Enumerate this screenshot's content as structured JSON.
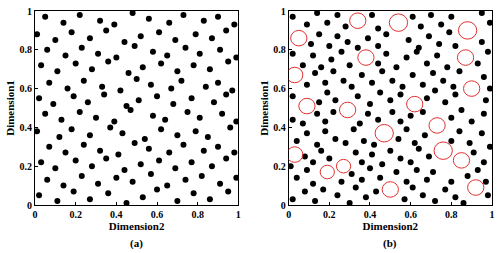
{
  "chart_data": [
    {
      "type": "scatter",
      "annotation": "(a)",
      "x_label": "Dimension2",
      "y_label": "Dimension1",
      "xlim": [
        0,
        1
      ],
      "ylim": [
        0,
        1
      ],
      "xticks": [
        0,
        0.2,
        0.4,
        0.6,
        0.8,
        1
      ],
      "yticks": [
        0,
        0.2,
        0.4,
        0.6,
        0.8,
        1
      ],
      "grid": false,
      "color": "#000000",
      "marker": "circle",
      "x": [
        0.02,
        0.11,
        0.19,
        0.27,
        0.36,
        0.45,
        0.53,
        0.6,
        0.7,
        0.78,
        0.86,
        0.95,
        0.06,
        0.14,
        0.23,
        0.31,
        0.4,
        0.48,
        0.57,
        0.65,
        0.74,
        0.82,
        0.91,
        0.99,
        0.03,
        0.1,
        0.2,
        0.28,
        0.35,
        0.44,
        0.52,
        0.61,
        0.69,
        0.77,
        0.87,
        0.94,
        0.07,
        0.15,
        0.24,
        0.32,
        0.41,
        0.49,
        0.56,
        0.66,
        0.73,
        0.83,
        0.9,
        0.98,
        0.01,
        0.12,
        0.18,
        0.27,
        0.37,
        0.43,
        0.54,
        0.62,
        0.7,
        0.79,
        0.85,
        0.96,
        0.05,
        0.13,
        0.22,
        0.3,
        0.39,
        0.47,
        0.58,
        0.64,
        0.75,
        0.81,
        0.92,
        0.99,
        0.02,
        0.09,
        0.19,
        0.26,
        0.34,
        0.45,
        0.51,
        0.6,
        0.68,
        0.77,
        0.88,
        0.94,
        0.07,
        0.16,
        0.24,
        0.33,
        0.42,
        0.5,
        0.57,
        0.67,
        0.72,
        0.84,
        0.9,
        0.97,
        0.03,
        0.11,
        0.2,
        0.28,
        0.36,
        0.46,
        0.53,
        0.62,
        0.7,
        0.78,
        0.86,
        0.95,
        0.06,
        0.15,
        0.23,
        0.31,
        0.4,
        0.49,
        0.58,
        0.65,
        0.74,
        0.81,
        0.91,
        0.99,
        0.01,
        0.1,
        0.18,
        0.27,
        0.35,
        0.44,
        0.52,
        0.61,
        0.69,
        0.79,
        0.87,
        0.94,
        0.05,
        0.14,
        0.22,
        0.32,
        0.39,
        0.48,
        0.56,
        0.66,
        0.73,
        0.83,
        0.9,
        0.98
      ],
      "y": [
        0.05,
        0.02,
        0.07,
        0.03,
        0.06,
        0.01,
        0.04,
        0.08,
        0.02,
        0.06,
        0.03,
        0.07,
        0.13,
        0.1,
        0.15,
        0.11,
        0.14,
        0.12,
        0.16,
        0.1,
        0.13,
        0.15,
        0.11,
        0.14,
        0.22,
        0.19,
        0.23,
        0.2,
        0.24,
        0.18,
        0.21,
        0.23,
        0.19,
        0.22,
        0.2,
        0.24,
        0.3,
        0.27,
        0.31,
        0.28,
        0.26,
        0.32,
        0.29,
        0.27,
        0.31,
        0.28,
        0.3,
        0.27,
        0.38,
        0.35,
        0.39,
        0.36,
        0.4,
        0.37,
        0.34,
        0.39,
        0.36,
        0.38,
        0.35,
        0.4,
        0.47,
        0.44,
        0.48,
        0.45,
        0.43,
        0.49,
        0.46,
        0.44,
        0.48,
        0.45,
        0.47,
        0.43,
        0.55,
        0.52,
        0.56,
        0.53,
        0.57,
        0.51,
        0.54,
        0.56,
        0.52,
        0.55,
        0.53,
        0.57,
        0.63,
        0.6,
        0.64,
        0.61,
        0.59,
        0.65,
        0.62,
        0.6,
        0.64,
        0.61,
        0.63,
        0.59,
        0.72,
        0.69,
        0.73,
        0.7,
        0.74,
        0.68,
        0.71,
        0.73,
        0.69,
        0.72,
        0.7,
        0.74,
        0.8,
        0.77,
        0.81,
        0.78,
        0.76,
        0.82,
        0.79,
        0.77,
        0.81,
        0.78,
        0.8,
        0.76,
        0.88,
        0.85,
        0.89,
        0.86,
        0.9,
        0.84,
        0.87,
        0.89,
        0.85,
        0.88,
        0.86,
        0.9,
        0.97,
        0.94,
        0.98,
        0.95,
        0.93,
        0.99,
        0.96,
        0.94,
        0.98,
        0.95,
        0.97,
        0.93
      ]
    },
    {
      "type": "scatter",
      "annotation": "(b)",
      "x_label": "Dimension2",
      "y_label": "Dimension1",
      "xlim": [
        0,
        1
      ],
      "ylim": [
        0,
        1
      ],
      "xticks": [
        0,
        0.2,
        0.4,
        0.6,
        0.8,
        1
      ],
      "yticks": [
        0,
        0.2,
        0.4,
        0.6,
        0.8,
        1
      ],
      "grid": false,
      "color": "#000000",
      "marker": "circle",
      "x": [
        0.02,
        0.08,
        0.13,
        0.17,
        0.24,
        0.3,
        0.33,
        0.38,
        0.43,
        0.57,
        0.61,
        0.66,
        0.72,
        0.77,
        0.82,
        0.86,
        0.98,
        0.97,
        0.04,
        0.09,
        0.12,
        0.26,
        0.31,
        0.36,
        0.4,
        0.45,
        0.53,
        0.58,
        0.63,
        0.68,
        0.71,
        0.8,
        0.88,
        0.93,
        0.01,
        0.08,
        0.12,
        0.16,
        0.2,
        0.33,
        0.36,
        0.41,
        0.46,
        0.5,
        0.55,
        0.6,
        0.64,
        0.69,
        0.91,
        0.96,
        0.99,
        0.04,
        0.09,
        0.14,
        0.18,
        0.23,
        0.28,
        0.32,
        0.37,
        0.42,
        0.54,
        0.58,
        0.62,
        0.67,
        0.8,
        0.84,
        0.89,
        0.95,
        0.02,
        0.07,
        0.14,
        0.18,
        0.22,
        0.35,
        0.39,
        0.44,
        0.51,
        0.55,
        0.6,
        0.66,
        0.8,
        0.85,
        0.9,
        0.96,
        0.02,
        0.15,
        0.19,
        0.23,
        0.34,
        0.4,
        0.45,
        0.5,
        0.55,
        0.68,
        0.72,
        0.77,
        0.82,
        0.97,
        0.99,
        0.09,
        0.13,
        0.18,
        0.22,
        0.27,
        0.31,
        0.36,
        0.41,
        0.46,
        0.51,
        0.56,
        0.61,
        0.66,
        0.71,
        0.76,
        0.81,
        0.84,
        0.96,
        0.02,
        0.07,
        0.12,
        0.16,
        0.21,
        0.26,
        0.3,
        0.44,
        0.48,
        0.53,
        0.58,
        0.63,
        0.68,
        0.73,
        0.78,
        0.93,
        0.98,
        0.11,
        0.15,
        0.2,
        0.24,
        0.29,
        0.34,
        0.39,
        0.44,
        0.48,
        0.59,
        0.64,
        0.69,
        0.74,
        0.79,
        0.82,
        0.95,
        0.02,
        0.09,
        0.14,
        0.19,
        0.24,
        0.28,
        0.41,
        0.44,
        0.61,
        0.65,
        0.7,
        0.75,
        0.8,
        0.95,
        0.99
      ],
      "y": [
        0.03,
        0.07,
        0.02,
        0.08,
        0.05,
        0.01,
        0.09,
        0.04,
        0.07,
        0.03,
        0.09,
        0.05,
        0.02,
        0.08,
        0.04,
        0.01,
        0.05,
        0.12,
        0.14,
        0.18,
        0.11,
        0.12,
        0.16,
        0.13,
        0.19,
        0.14,
        0.17,
        0.12,
        0.18,
        0.13,
        0.17,
        0.12,
        0.15,
        0.18,
        0.2,
        0.25,
        0.22,
        0.28,
        0.24,
        0.27,
        0.22,
        0.26,
        0.21,
        0.28,
        0.24,
        0.22,
        0.29,
        0.25,
        0.27,
        0.22,
        0.3,
        0.33,
        0.37,
        0.31,
        0.38,
        0.34,
        0.32,
        0.39,
        0.33,
        0.31,
        0.34,
        0.39,
        0.32,
        0.36,
        0.33,
        0.38,
        0.32,
        0.37,
        0.44,
        0.42,
        0.47,
        0.43,
        0.48,
        0.42,
        0.47,
        0.44,
        0.48,
        0.43,
        0.46,
        0.48,
        0.45,
        0.49,
        0.43,
        0.47,
        0.56,
        0.53,
        0.58,
        0.54,
        0.56,
        0.52,
        0.58,
        0.54,
        0.57,
        0.55,
        0.59,
        0.53,
        0.57,
        0.54,
        0.6,
        0.62,
        0.68,
        0.63,
        0.69,
        0.64,
        0.61,
        0.67,
        0.63,
        0.69,
        0.64,
        0.61,
        0.67,
        0.62,
        0.68,
        0.64,
        0.61,
        0.69,
        0.66,
        0.78,
        0.72,
        0.77,
        0.71,
        0.75,
        0.79,
        0.72,
        0.73,
        0.78,
        0.71,
        0.76,
        0.79,
        0.73,
        0.77,
        0.71,
        0.73,
        0.79,
        0.83,
        0.88,
        0.82,
        0.87,
        0.84,
        0.81,
        0.86,
        0.82,
        0.88,
        0.85,
        0.81,
        0.87,
        0.83,
        0.89,
        0.82,
        0.84,
        0.97,
        0.93,
        0.99,
        0.94,
        0.98,
        0.92,
        0.98,
        0.91,
        0.97,
        0.92,
        0.98,
        0.93,
        0.97,
        0.99,
        0.94
      ],
      "circles": [
        {
          "x": 0.05,
          "y": 0.86,
          "r": 0.04
        },
        {
          "x": 0.34,
          "y": 0.95,
          "r": 0.04
        },
        {
          "x": 0.54,
          "y": 0.94,
          "r": 0.045
        },
        {
          "x": 0.88,
          "y": 0.9,
          "r": 0.045
        },
        {
          "x": 0.03,
          "y": 0.67,
          "r": 0.04
        },
        {
          "x": 0.38,
          "y": 0.76,
          "r": 0.04
        },
        {
          "x": 0.87,
          "y": 0.76,
          "r": 0.04
        },
        {
          "x": 0.9,
          "y": 0.6,
          "r": 0.04
        },
        {
          "x": 0.09,
          "y": 0.51,
          "r": 0.04
        },
        {
          "x": 0.29,
          "y": 0.49,
          "r": 0.04
        },
        {
          "x": 0.62,
          "y": 0.52,
          "r": 0.04
        },
        {
          "x": 0.47,
          "y": 0.37,
          "r": 0.045
        },
        {
          "x": 0.73,
          "y": 0.41,
          "r": 0.04
        },
        {
          "x": 0.03,
          "y": 0.26,
          "r": 0.04
        },
        {
          "x": 0.27,
          "y": 0.2,
          "r": 0.035
        },
        {
          "x": 0.76,
          "y": 0.28,
          "r": 0.045
        },
        {
          "x": 0.85,
          "y": 0.23,
          "r": 0.04
        },
        {
          "x": 0.5,
          "y": 0.08,
          "r": 0.04
        },
        {
          "x": 0.92,
          "y": 0.09,
          "r": 0.04
        },
        {
          "x": 0.19,
          "y": 0.17,
          "r": 0.035
        }
      ]
    }
  ]
}
